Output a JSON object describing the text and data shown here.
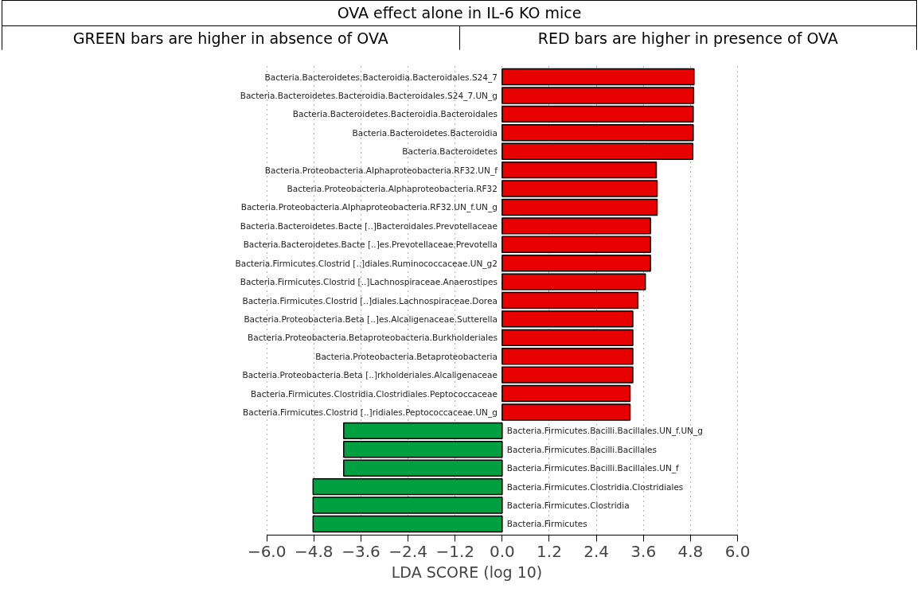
{
  "chart_data": {
    "type": "bar",
    "orientation": "horizontal",
    "title": "OVA effect alone in IL-6 KO mice",
    "annotations": [
      "GREEN bars are higher in absence of OVA",
      "RED bars are higher in presence of OVA"
    ],
    "xlabel": "LDA SCORE (log 10)",
    "categories": [
      "Bacteria.Bacteroidetes.Bacteroidia.Bacteroidales.S24_7",
      "Bacteria.Bacteroidetes.Bacteroidia.Bacteroidales.S24_7.UN_g",
      "Bacteria.Bacteroidetes.Bacteroidia.Bacteroidales",
      "Bacteria.Bacteroidetes.Bacteroidia",
      "Bacteria.Bacteroidetes",
      "Bacteria.Proteobacteria.Alphaproteobacteria.RF32.UN_f",
      "Bacteria.Proteobacteria.Alphaproteobacteria.RF32",
      "Bacteria.Proteobacteria.Alphaproteobacteria.RF32.UN_f.UN_g",
      "Bacteria.Bacteroidetes.Bacte [..]Bacteroidales.Prevotellaceae",
      "Bacteria.Bacteroidetes.Bacte [..]es.Prevotellaceae.Prevotella",
      "Bacteria.Firmicutes.Clostrid [..]diales.Ruminococcaceae.UN_g2",
      "Bacteria.Firmicutes.Clostrid [..]Lachnospiraceae.Anaerostipes",
      "Bacteria.Firmicutes.Clostrid [..]diales.Lachnospiraceae.Dorea",
      "Bacteria.Proteobacteria.Beta [..]es.Alcaligenaceae.Sutterella",
      "Bacteria.Proteobacteria.Betaproteobacteria.Burkholderiales",
      "Bacteria.Proteobacteria.Betaproteobacteria",
      "Bacteria.Proteobacteria.Beta [..]rkholderiales.Alcaligenaceae",
      "Bacteria.Firmicutes.Clostridia.Clostridiales.Peptococcaceae",
      "Bacteria.Firmicutes.Clostrid [..]ridiales.Peptococcaceae.UN_g",
      "Bacteria.Firmicutes.Bacilli.Bacillales.UN_f.UN_g",
      "Bacteria.Firmicutes.Bacilli.Bacillales",
      "Bacteria.Firmicutes.Bacilli.Bacillales.UN_f",
      "Bacteria.Firmicutes.Clostridia.Clostridiales",
      "Bacteria.Firmicutes.Clostridia",
      "Bacteria.Firmicutes"
    ],
    "values": [
      4.89,
      4.88,
      4.87,
      4.87,
      4.86,
      3.93,
      3.95,
      3.95,
      3.78,
      3.78,
      3.78,
      3.65,
      3.46,
      3.33,
      3.33,
      3.33,
      3.33,
      3.26,
      3.26,
      -4.04,
      -4.04,
      -4.04,
      -4.82,
      -4.82,
      -4.82
    ],
    "colors": [
      "#e60000",
      "#e60000",
      "#e60000",
      "#e60000",
      "#e60000",
      "#e60000",
      "#e60000",
      "#e60000",
      "#e60000",
      "#e60000",
      "#e60000",
      "#e60000",
      "#e60000",
      "#e60000",
      "#e60000",
      "#e60000",
      "#e60000",
      "#e60000",
      "#e60000",
      "#00a040",
      "#00a040",
      "#00a040",
      "#00a040",
      "#00a040",
      "#00a040"
    ],
    "xlim": [
      -6.0,
      6.0
    ],
    "xticks": [
      {
        "value": -6.0,
        "label": "−6.0"
      },
      {
        "value": -4.8,
        "label": "−4.8"
      },
      {
        "value": -3.6,
        "label": "−3.6"
      },
      {
        "value": -2.4,
        "label": "−2.4"
      },
      {
        "value": -1.2,
        "label": "−1.2"
      },
      {
        "value": 0.0,
        "label": "0.0"
      },
      {
        "value": 1.2,
        "label": "1.2"
      },
      {
        "value": 2.4,
        "label": "2.4"
      },
      {
        "value": 3.6,
        "label": "3.6"
      },
      {
        "value": 4.8,
        "label": "4.8"
      },
      {
        "value": 6.0,
        "label": "6.0"
      }
    ],
    "grid": "x",
    "tick_labels": "x"
  }
}
